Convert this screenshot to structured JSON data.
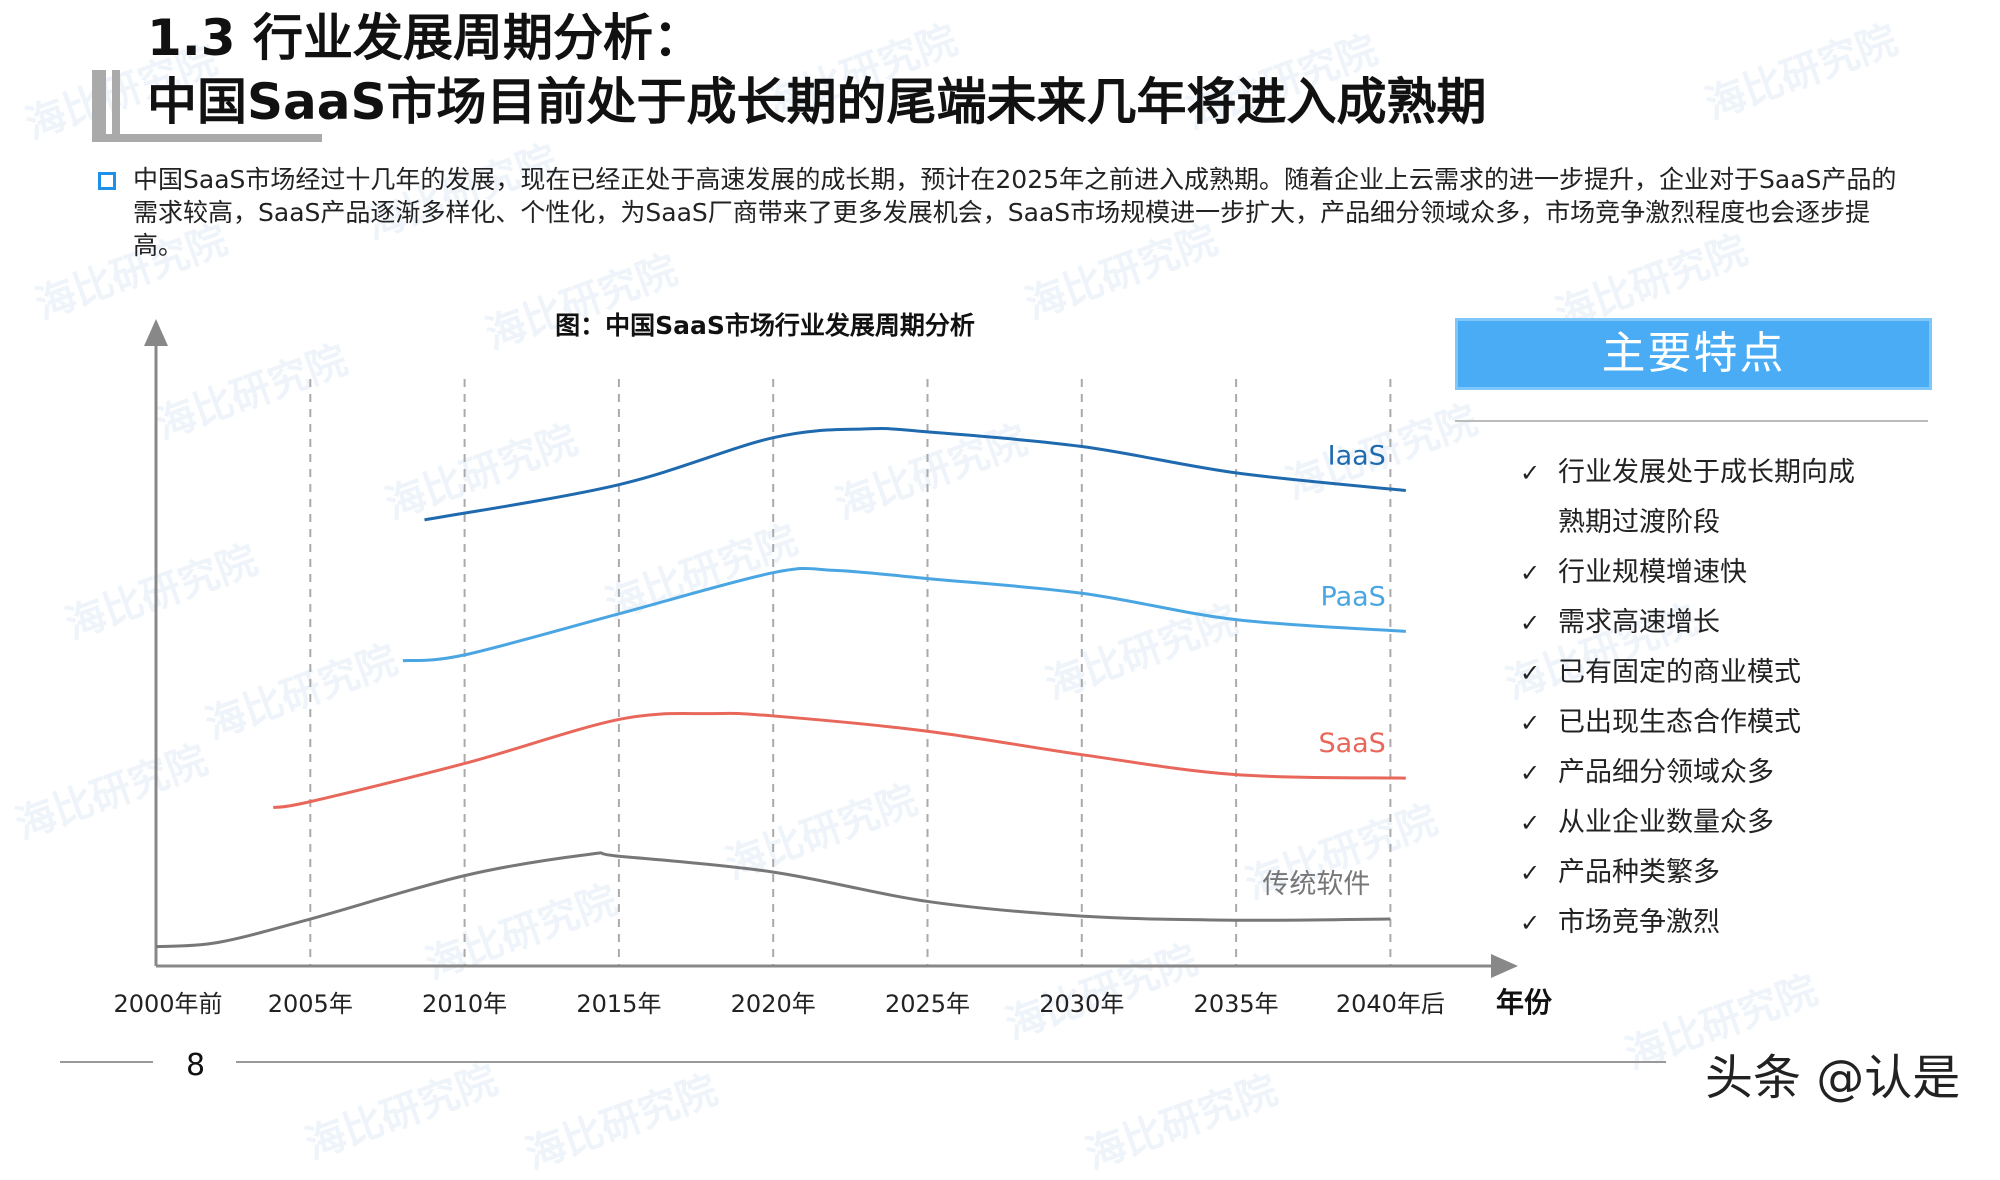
{
  "header": {
    "title_line1": "1.3 行业发展周期分析：",
    "title_line2": "中国SaaS市场目前处于成长期的尾端未来几年将进入成熟期"
  },
  "intro": "中国SaaS市场经过十几年的发展，现在已经正处于高速发展的成长期，预计在2025年之前进入成熟期。随着企业上云需求的进一步提升，企业对于SaaS产品的需求较高，SaaS产品逐渐多样化、个性化，为SaaS厂商带来了更多发展机会，SaaS市场规模进一步扩大，产品细分领域众多，市场竞争激烈程度也会逐步提高。",
  "chart_data": {
    "type": "line",
    "title": "图：中国SaaS市场行业发展周期分析",
    "xlabel": "年份",
    "ylabel": "",
    "x_ticks": [
      {
        "year": 2000,
        "label": "2000年前"
      },
      {
        "year": 2005,
        "label": "2005年"
      },
      {
        "year": 2010,
        "label": "2010年"
      },
      {
        "year": 2015,
        "label": "2015年"
      },
      {
        "year": 2020,
        "label": "2020年"
      },
      {
        "year": 2025,
        "label": "2025年"
      },
      {
        "year": 2030,
        "label": "2030年"
      },
      {
        "year": 2035,
        "label": "2035年"
      },
      {
        "year": 2040,
        "label": "2040年后"
      }
    ],
    "xlim": [
      2000,
      2048
    ],
    "ylim": [
      0,
      100
    ],
    "grid": "vertical-dashed",
    "series": [
      {
        "name": "IaaS",
        "color": "#1f6aae",
        "points": [
          [
            2008.7,
            76
          ],
          [
            2015,
            82
          ],
          [
            2020,
            90
          ],
          [
            2023,
            91.5
          ],
          [
            2025,
            91
          ],
          [
            2030,
            88.5
          ],
          [
            2035,
            84
          ],
          [
            2040.5,
            81
          ]
        ]
      },
      {
        "name": "PaaS",
        "color": "#4aa6e2",
        "points": [
          [
            2008,
            52
          ],
          [
            2010,
            53
          ],
          [
            2015,
            60
          ],
          [
            2020,
            67
          ],
          [
            2022,
            67.4
          ],
          [
            2025,
            66
          ],
          [
            2030,
            63.5
          ],
          [
            2035,
            59
          ],
          [
            2040.5,
            57
          ]
        ]
      },
      {
        "name": "SaaS",
        "color": "#e8675a",
        "points": [
          [
            2003.8,
            27
          ],
          [
            2005,
            28
          ],
          [
            2010,
            34.5
          ],
          [
            2015,
            42
          ],
          [
            2018,
            43
          ],
          [
            2020,
            42.6
          ],
          [
            2025,
            40
          ],
          [
            2030,
            36
          ],
          [
            2035,
            32.6
          ],
          [
            2040.5,
            32
          ]
        ]
      },
      {
        "name": "传统软件",
        "color": "#777777",
        "points": [
          [
            2000,
            3.3
          ],
          [
            2002,
            4
          ],
          [
            2005,
            8
          ],
          [
            2010,
            15.4
          ],
          [
            2014,
            19
          ],
          [
            2015,
            18.7
          ],
          [
            2020,
            16
          ],
          [
            2025,
            11
          ],
          [
            2030,
            8.5
          ],
          [
            2035,
            7.8
          ],
          [
            2040,
            8
          ]
        ]
      }
    ]
  },
  "features": {
    "title": "主要特点",
    "check_icon": "check-icon",
    "items": [
      "行业发展处于成长期向成熟期过渡阶段",
      "行业规模增速快",
      "需求高速增长",
      "已有固定的商业模式",
      "已出现生态合作模式",
      "产品细分领域众多",
      "从业企业数量众多",
      "产品种类繁多",
      "市场竞争激烈"
    ]
  },
  "footer": {
    "page_number": "8",
    "credit": "头条 @认是"
  },
  "watermark": "海比研究院",
  "colors": {
    "accent": "#49acf4",
    "bullet": "#1e90e8"
  }
}
